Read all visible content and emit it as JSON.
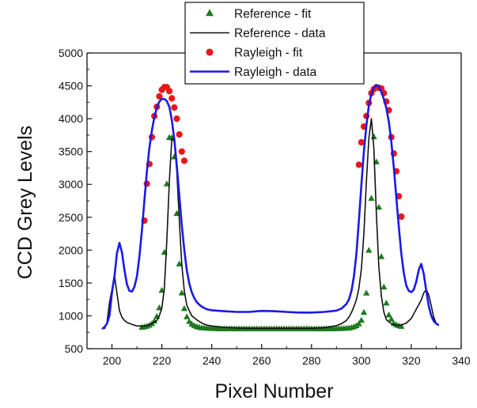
{
  "chart_data": {
    "type": "line",
    "xlabel": "Pixel Number",
    "ylabel": "CCD Grey Levels",
    "xlim": [
      190,
      340
    ],
    "ylim": [
      500,
      5000
    ],
    "x_ticks": [
      200,
      220,
      240,
      260,
      280,
      300,
      320,
      340
    ],
    "y_ticks": [
      500,
      1000,
      1500,
      2000,
      2500,
      3000,
      3500,
      4000,
      4500,
      5000
    ],
    "grid": false,
    "legend_position": "top-center",
    "series": [
      {
        "name": "Reference - fit",
        "kind": "marker",
        "marker": "triangle",
        "color": "#1c7a1c",
        "x": [
          212,
          213,
          214,
          215,
          216,
          217,
          218,
          219,
          220,
          221,
          222,
          223,
          224,
          225,
          226,
          227,
          228,
          229,
          230,
          231,
          232,
          233,
          234,
          235,
          236,
          237,
          238,
          239,
          240,
          241,
          242,
          243,
          244,
          245,
          246,
          247,
          248,
          249,
          250,
          251,
          252,
          253,
          254,
          255,
          256,
          257,
          258,
          259,
          260,
          261,
          262,
          263,
          264,
          265,
          266,
          267,
          268,
          269,
          270,
          271,
          272,
          273,
          274,
          275,
          276,
          277,
          278,
          279,
          280,
          281,
          282,
          283,
          284,
          285,
          286,
          287,
          288,
          289,
          290,
          291,
          292,
          293,
          294,
          295,
          296,
          297,
          298,
          299,
          300,
          301,
          302,
          303,
          304,
          305,
          306,
          307,
          308,
          309,
          310,
          311,
          312,
          313,
          314,
          315,
          316
        ],
        "y": [
          821,
          828,
          838,
          853,
          877,
          917,
          987,
          1119,
          1384,
          1963,
          3005,
          3710,
          3705,
          3415,
          2553,
          1786,
          1344,
          1106,
          981,
          911,
          870,
          847,
          832,
          821,
          815,
          811,
          808,
          806,
          804,
          802,
          801,
          800,
          800,
          800,
          800,
          799,
          799,
          799,
          799,
          799,
          799,
          799,
          799,
          799,
          799,
          799,
          799,
          799,
          799,
          799,
          799,
          799,
          799,
          799,
          799,
          799,
          799,
          799,
          799,
          799,
          799,
          799,
          799,
          799,
          799,
          799,
          799,
          799,
          799,
          799,
          799,
          799,
          799,
          799,
          799,
          800,
          800,
          800,
          801,
          802,
          803,
          805,
          808,
          812,
          819,
          829,
          846,
          875,
          929,
          1049,
          1343,
          1994,
          2785,
          3720,
          3340,
          2650,
          1898,
          1435,
          1190,
          1010,
          945,
          880,
          860,
          845,
          835
        ]
      },
      {
        "name": "Reference - data",
        "kind": "line",
        "color": "#111111",
        "x": [
          197,
          198,
          199,
          200,
          201,
          202,
          203,
          204,
          205,
          206,
          208,
          210,
          212,
          214,
          216,
          218,
          219,
          220,
          221,
          222,
          223,
          224,
          225,
          226,
          227,
          228,
          229,
          230,
          232,
          234,
          236,
          238,
          240,
          245,
          250,
          255,
          260,
          265,
          270,
          275,
          280,
          285,
          290,
          292,
          294,
          295,
          296,
          297,
          298,
          299,
          300,
          301,
          302,
          303,
          304,
          305,
          306,
          307,
          308,
          309,
          310,
          312,
          314,
          316,
          318,
          320,
          322,
          324,
          325,
          326,
          327,
          328,
          329,
          330,
          331
        ],
        "y": [
          800,
          900,
          1200,
          1400,
          1620,
          1350,
          1080,
          980,
          930,
          900,
          870,
          845,
          845,
          850,
          880,
          930,
          1000,
          1120,
          1420,
          2150,
          3050,
          3700,
          3650,
          3200,
          2450,
          1780,
          1380,
          1160,
          1000,
          940,
          890,
          860,
          845,
          825,
          815,
          810,
          810,
          810,
          810,
          810,
          810,
          820,
          850,
          880,
          930,
          980,
          1050,
          1140,
          1250,
          1420,
          1720,
          2250,
          3050,
          3700,
          4000,
          3550,
          2550,
          1750,
          1300,
          1060,
          940,
          880,
          855,
          860,
          890,
          960,
          1100,
          1240,
          1350,
          1400,
          1320,
          1150,
          980,
          880,
          850
        ]
      },
      {
        "name": "Rayleigh - fit",
        "kind": "marker",
        "marker": "circle",
        "color": "#e81818",
        "x": [
          213,
          214,
          215,
          216,
          217,
          218,
          219,
          220,
          221,
          222,
          223,
          224,
          225,
          226,
          227,
          228,
          229,
          299,
          300,
          301,
          302,
          303,
          304,
          305,
          306,
          307,
          308,
          309,
          310,
          311,
          312,
          313,
          314,
          315,
          316
        ],
        "y": [
          2450,
          3010,
          3310,
          3720,
          4040,
          4180,
          4340,
          4440,
          4480,
          4480,
          4420,
          4310,
          4170,
          4000,
          3760,
          3500,
          3360,
          3300,
          3640,
          3880,
          4040,
          4240,
          4390,
          4450,
          4480,
          4470,
          4460,
          4390,
          4260,
          4130,
          3720,
          3470,
          3200,
          2820,
          2510
        ]
      },
      {
        "name": "Rayleigh - data",
        "kind": "line",
        "color": "#1a1ae6",
        "x": [
          196,
          197,
          198,
          199,
          200,
          201,
          202,
          203,
          204,
          205,
          206,
          207,
          208,
          209,
          210,
          211,
          212,
          213,
          214,
          215,
          216,
          217,
          218,
          219,
          220,
          221,
          222,
          223,
          224,
          225,
          226,
          227,
          228,
          229,
          230,
          231,
          232,
          233,
          234,
          235,
          236,
          237,
          238,
          240,
          245,
          250,
          255,
          260,
          265,
          270,
          275,
          280,
          285,
          288,
          290,
          292,
          294,
          295,
          296,
          297,
          298,
          299,
          300,
          301,
          302,
          303,
          304,
          305,
          306,
          307,
          308,
          309,
          310,
          311,
          312,
          313,
          314,
          315,
          316,
          317,
          318,
          319,
          320,
          321,
          322,
          323,
          324,
          325,
          326,
          327,
          328,
          329,
          330,
          331
        ],
        "y": [
          800,
          830,
          880,
          1000,
          1350,
          1600,
          1950,
          2110,
          1970,
          1700,
          1480,
          1380,
          1370,
          1440,
          1600,
          1900,
          2300,
          2750,
          3200,
          3550,
          3820,
          4020,
          4170,
          4260,
          4300,
          4300,
          4270,
          4180,
          3980,
          3680,
          3280,
          2830,
          2380,
          2000,
          1700,
          1490,
          1360,
          1270,
          1210,
          1170,
          1140,
          1120,
          1100,
          1085,
          1070,
          1060,
          1060,
          1075,
          1070,
          1060,
          1050,
          1050,
          1060,
          1070,
          1080,
          1110,
          1180,
          1250,
          1380,
          1600,
          1950,
          2450,
          3000,
          3500,
          3900,
          4200,
          4380,
          4470,
          4510,
          4490,
          4410,
          4300,
          4160,
          3950,
          3650,
          3250,
          2800,
          2350,
          1950,
          1650,
          1460,
          1380,
          1360,
          1400,
          1520,
          1700,
          1790,
          1640,
          1380,
          1150,
          1000,
          920,
          880,
          860
        ]
      }
    ]
  }
}
